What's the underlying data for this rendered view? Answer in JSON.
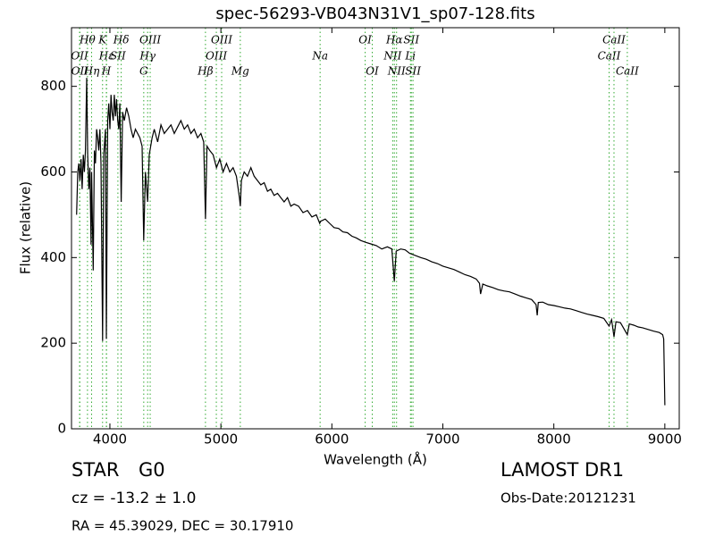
{
  "chart_data": {
    "type": "line",
    "title": "spec-56293-VB043N31V1_sp07-128.fits",
    "x_label": "Wavelength (Å)",
    "y_label": "Flux (relative)",
    "xlim": [
      3654,
      9130
    ],
    "ylim": [
      0,
      937
    ],
    "xticks": [
      4000,
      5000,
      6000,
      7000,
      8000,
      9000
    ],
    "yticks": [
      0,
      200,
      400,
      600,
      800
    ],
    "color": "#000000",
    "line_color": "#33aa33",
    "x": [
      3700,
      3710,
      3720,
      3730,
      3740,
      3750,
      3760,
      3770,
      3780,
      3791,
      3800,
      3810,
      3820,
      3830,
      3835,
      3850,
      3860,
      3870,
      3880,
      3890,
      3900,
      3910,
      3920,
      3934,
      3945,
      3960,
      3968,
      3980,
      3990,
      4000,
      4010,
      4020,
      4030,
      4040,
      4050,
      4060,
      4070,
      4080,
      4090,
      4102,
      4115,
      4130,
      4150,
      4170,
      4190,
      4210,
      4230,
      4250,
      4270,
      4290,
      4305,
      4320,
      4340,
      4355,
      4380,
      4400,
      4430,
      4460,
      4490,
      4520,
      4550,
      4580,
      4610,
      4640,
      4670,
      4700,
      4730,
      4760,
      4790,
      4820,
      4845,
      4861,
      4875,
      4900,
      4930,
      4960,
      4990,
      5020,
      5050,
      5080,
      5110,
      5140,
      5167,
      5175,
      5185,
      5210,
      5240,
      5270,
      5300,
      5330,
      5360,
      5390,
      5420,
      5450,
      5480,
      5510,
      5540,
      5570,
      5600,
      5630,
      5660,
      5700,
      5740,
      5780,
      5820,
      5860,
      5890,
      5900,
      5940,
      5980,
      6020,
      6060,
      6100,
      6140,
      6180,
      6220,
      6260,
      6300,
      6350,
      6400,
      6450,
      6500,
      6540,
      6563,
      6580,
      6620,
      6660,
      6700,
      6750,
      6800,
      6850,
      6900,
      6950,
      7000,
      7050,
      7100,
      7150,
      7200,
      7250,
      7300,
      7330,
      7340,
      7360,
      7400,
      7450,
      7500,
      7550,
      7600,
      7650,
      7700,
      7750,
      7800,
      7840,
      7850,
      7860,
      7900,
      7950,
      8000,
      8050,
      8100,
      8150,
      8200,
      8250,
      8300,
      8350,
      8400,
      8450,
      8498,
      8520,
      8542,
      8560,
      8600,
      8662,
      8680,
      8720,
      8760,
      8800,
      8850,
      8900,
      8950,
      8980,
      8990,
      9000
    ],
    "values": [
      500,
      600,
      620,
      580,
      630,
      560,
      640,
      600,
      650,
      820,
      640,
      560,
      610,
      430,
      600,
      370,
      650,
      620,
      700,
      680,
      650,
      700,
      620,
      205,
      640,
      700,
      210,
      720,
      760,
      700,
      780,
      740,
      720,
      780,
      730,
      770,
      720,
      700,
      760,
      530,
      740,
      720,
      750,
      730,
      700,
      680,
      700,
      690,
      680,
      660,
      440,
      600,
      530,
      640,
      680,
      700,
      670,
      710,
      690,
      700,
      710,
      690,
      705,
      720,
      700,
      710,
      690,
      700,
      680,
      690,
      670,
      490,
      660,
      650,
      640,
      610,
      630,
      600,
      620,
      600,
      610,
      590,
      540,
      520,
      580,
      600,
      590,
      610,
      590,
      580,
      570,
      575,
      555,
      560,
      545,
      550,
      540,
      530,
      540,
      520,
      525,
      520,
      505,
      510,
      495,
      500,
      480,
      485,
      490,
      480,
      470,
      468,
      460,
      458,
      450,
      446,
      440,
      436,
      432,
      428,
      420,
      425,
      420,
      345,
      415,
      420,
      418,
      410,
      405,
      400,
      396,
      390,
      386,
      380,
      376,
      372,
      366,
      360,
      356,
      350,
      340,
      315,
      338,
      334,
      330,
      325,
      322,
      320,
      315,
      310,
      306,
      302,
      290,
      265,
      295,
      296,
      290,
      288,
      285,
      282,
      280,
      276,
      272,
      268,
      265,
      262,
      258,
      240,
      255,
      215,
      250,
      248,
      220,
      245,
      242,
      238,
      236,
      232,
      228,
      225,
      220,
      210,
      55
    ],
    "lines": [
      {
        "wavelength": 3727,
        "label": "OII"
      },
      {
        "wavelength": 3729,
        "label": "OII"
      },
      {
        "wavelength": 3798,
        "label": "Hθ"
      },
      {
        "wavelength": 3835,
        "label": "Hη"
      },
      {
        "wavelength": 3934,
        "label": "K"
      },
      {
        "wavelength": 3970,
        "label": "Hε"
      },
      {
        "wavelength": 3968,
        "label": "H"
      },
      {
        "wavelength": 4072,
        "label": "SII"
      },
      {
        "wavelength": 4102,
        "label": "Hδ"
      },
      {
        "wavelength": 4305,
        "label": "G"
      },
      {
        "wavelength": 4340,
        "label": "Hγ"
      },
      {
        "wavelength": 4363,
        "label": "OIII"
      },
      {
        "wavelength": 4861,
        "label": "Hβ"
      },
      {
        "wavelength": 4959,
        "label": "OIII"
      },
      {
        "wavelength": 5007,
        "label": "OIII"
      },
      {
        "wavelength": 5175,
        "label": "Mg"
      },
      {
        "wavelength": 5894,
        "label": "Na"
      },
      {
        "wavelength": 6300,
        "label": "OI"
      },
      {
        "wavelength": 6364,
        "label": "OI"
      },
      {
        "wavelength": 6548,
        "label": "NII"
      },
      {
        "wavelength": 6563,
        "label": "Hα"
      },
      {
        "wavelength": 6583,
        "label": "NII"
      },
      {
        "wavelength": 6708,
        "label": "Li"
      },
      {
        "wavelength": 6716,
        "label": "SII"
      },
      {
        "wavelength": 6731,
        "label": "SII"
      },
      {
        "wavelength": 8498,
        "label": "CaII"
      },
      {
        "wavelength": 8542,
        "label": "CaII"
      },
      {
        "wavelength": 8662,
        "label": "CaII"
      }
    ],
    "object_class": "STAR",
    "subclass": "G0",
    "redshift": "cz = -13.2 ± 1.0",
    "coords": "RA = 45.39029, DEC = 30.17910",
    "survey": "LAMOST DR1",
    "obs_date": "Obs-Date:20121231"
  }
}
